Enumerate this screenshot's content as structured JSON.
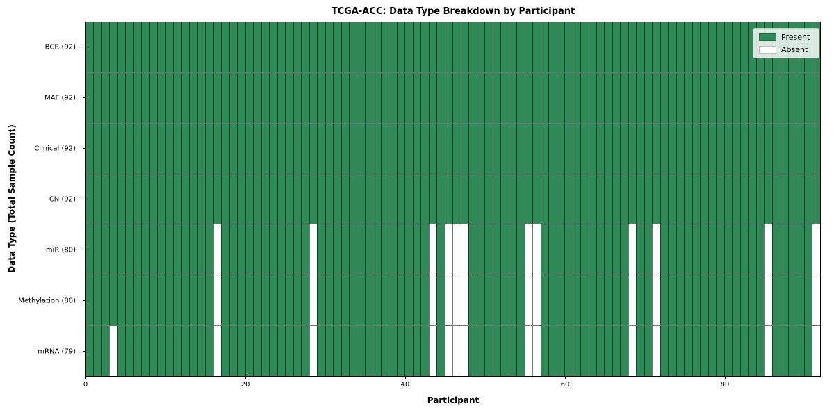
{
  "title": "TCGA-ACC: Data Type Breakdown by Participant",
  "xlabel": "Participant",
  "ylabel": "Data Type (Total Sample Count)",
  "legend": {
    "present_label": "Present",
    "absent_label": "Absent"
  },
  "colors": {
    "present": "#2e8b57",
    "absent": "#ffffff",
    "grid_line": "rgba(0,0,0,0.55)",
    "spine": "#000000",
    "legend_border": "#cccccc"
  },
  "chart_data": {
    "type": "heatmap",
    "title": "TCGA-ACC: Data Type Breakdown by Participant",
    "xlabel": "Participant",
    "ylabel": "Data Type (Total Sample Count)",
    "n_participants": 92,
    "x_ticks": [
      0,
      20,
      40,
      60,
      80
    ],
    "xlim": [
      0,
      92
    ],
    "grid": true,
    "legend_position": "upper right",
    "legend_entries": [
      "Present",
      "Absent"
    ],
    "cell_states": {
      "present": 1,
      "absent": 0
    },
    "rows": [
      {
        "label": "BCR (92)",
        "data_type": "BCR",
        "present_count": 92,
        "absent_participants": []
      },
      {
        "label": "MAF (92)",
        "data_type": "MAF",
        "present_count": 92,
        "absent_participants": []
      },
      {
        "label": "Clinical (92)",
        "data_type": "Clinical",
        "present_count": 92,
        "absent_participants": []
      },
      {
        "label": "CN (92)",
        "data_type": "CN",
        "present_count": 92,
        "absent_participants": []
      },
      {
        "label": "miR (80)",
        "data_type": "miR",
        "present_count": 80,
        "absent_participants": [
          16,
          28,
          43,
          45,
          46,
          47,
          55,
          56,
          68,
          71,
          85,
          91
        ]
      },
      {
        "label": "Methylation (80)",
        "data_type": "Methylation",
        "present_count": 80,
        "absent_participants": [
          16,
          28,
          43,
          45,
          46,
          47,
          55,
          56,
          68,
          71,
          85,
          91
        ]
      },
      {
        "label": "mRNA (79)",
        "data_type": "mRNA",
        "present_count": 79,
        "absent_participants": [
          3,
          16,
          28,
          43,
          45,
          46,
          47,
          55,
          56,
          68,
          71,
          85,
          91
        ]
      }
    ]
  }
}
